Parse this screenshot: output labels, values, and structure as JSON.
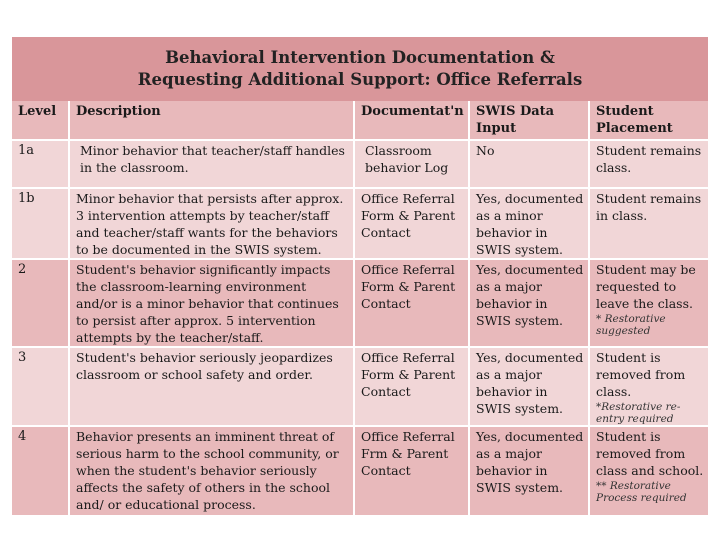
{
  "title": {
    "line1": "Behavioral Intervention Documentation &",
    "line2": "Requesting Additional Support: Office Referrals"
  },
  "headers": {
    "level": "Level",
    "description": "Description",
    "documentation": "Documentat'n",
    "swis": "SWIS Data Input",
    "placement": "Student Placement"
  },
  "rows": [
    {
      "level": "1a",
      "description": "Minor behavior that teacher/staff handles in the classroom.",
      "documentation": "Classroom behavior Log",
      "swis": "No",
      "placement": "Student remains class.",
      "note": ""
    },
    {
      "level": "1b",
      "description": "Minor behavior that persists after approx. 3 intervention attempts by teacher/staff and teacher/staff wants for the behaviors to be documented in the SWIS system.",
      "documentation": "Office Referral Form & Parent Contact",
      "swis": "Yes, documented as a minor behavior in SWIS system.",
      "placement": "Student remains in class.",
      "note": ""
    },
    {
      "level": "2",
      "description": "Student's behavior significantly impacts the classroom-learning environment and/or is a minor behavior that continues to persist after approx. 5 intervention attempts by the teacher/staff.",
      "documentation": "Office Referral Form & Parent Contact",
      "swis": "Yes, documented as a major behavior in SWIS system.",
      "placement": "Student may be requested to leave the class.",
      "note": "* Restorative suggested"
    },
    {
      "level": "3",
      "description": "Student's behavior seriously jeopardizes classroom or school safety and order.",
      "documentation": "Office Referral Form & Parent Contact",
      "swis": "Yes, documented as a major behavior in SWIS system.",
      "placement": "Student is removed from class.",
      "note": "*Restorative re-entry required"
    },
    {
      "level": "4",
      "description": "Behavior presents an imminent threat of serious harm to the school community, or when the student's behavior seriously affects the safety of others in the school and/ or educational process.",
      "documentation": "Office Referral Frm & Parent Contact",
      "swis": "Yes, documented as a major behavior in SWIS system.",
      "placement": "Student is removed from class and school.",
      "note": "** Restorative Process required"
    }
  ]
}
